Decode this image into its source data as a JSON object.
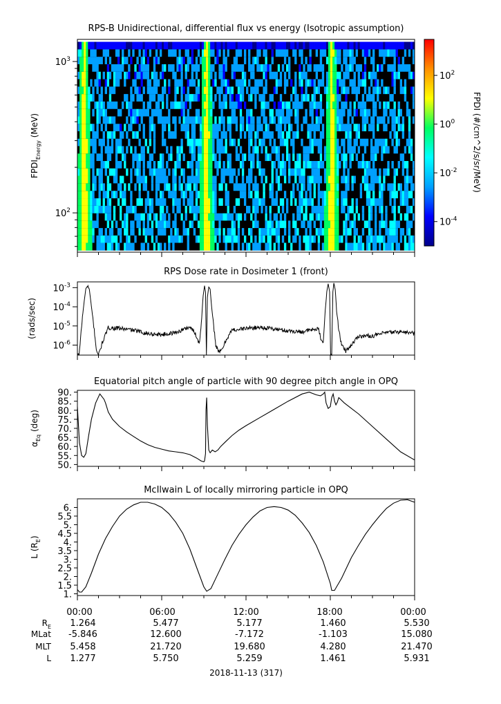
{
  "footer": {
    "date_label": "2018-11-13 (317)",
    "row_labels": [
      "R",
      "MLat",
      "MLT",
      "L"
    ],
    "row_label_sub": "E",
    "columns": [
      {
        "time": "00:00",
        "re": "1.264",
        "mlat": "-5.846",
        "mlt": "5.458",
        "l": "1.277"
      },
      {
        "time": "06:00",
        "re": "5.477",
        "mlat": "12.600",
        "mlt": "21.720",
        "l": "5.750"
      },
      {
        "time": "12:00",
        "re": "5.177",
        "mlat": "-7.172",
        "mlt": "19.680",
        "l": "5.259"
      },
      {
        "time": "18:00",
        "re": "1.460",
        "mlat": "-1.103",
        "mlt": "4.280",
        "l": "1.461"
      },
      {
        "time": "00:00",
        "re": "5.530",
        "mlat": "15.080",
        "mlt": "21.470",
        "l": "5.931"
      }
    ]
  },
  "chart_data": [
    {
      "type": "heatmap",
      "title": "RPS-B  Unidirectional, differential flux vs energy (Isotropic assumption)",
      "ylabel": "FPDI",
      "ylabel_sub": "Energy",
      "ylabel_unit": "(MeV)",
      "y_scale": "log",
      "ylim": [
        55,
        1400
      ],
      "y_ticks": [
        {
          "value": 100,
          "label": "10",
          "exp": "2"
        },
        {
          "value": 1000,
          "label": "10",
          "exp": "3"
        }
      ],
      "x_range_hours": [
        0,
        24
      ],
      "energy_bins_mev": [
        60,
        67,
        75,
        84,
        94,
        105,
        118,
        132,
        148,
        166,
        186,
        208,
        233,
        261,
        292,
        327,
        366,
        410,
        459,
        514,
        576,
        645,
        722,
        809,
        906,
        1015,
        1137,
        1273
      ],
      "peak_times_hours": [
        0.5,
        9.2,
        18.1
      ],
      "colorbar": {
        "label": "FPDI (#/cm^2/s/sr/MeV)",
        "scale": "log",
        "range": [
          1e-05,
          3000
        ],
        "ticks": [
          {
            "value": 0.0001,
            "label": "10",
            "exp": "-4"
          },
          {
            "value": 0.01,
            "label": "10",
            "exp": "-2"
          },
          {
            "value": 1,
            "label": "10",
            "exp": "0"
          },
          {
            "value": 100,
            "label": "10",
            "exp": "2"
          }
        ],
        "colors": [
          "#00008b",
          "#0000ff",
          "#00a0ff",
          "#00ffff",
          "#00ff60",
          "#ffff00",
          "#ff9000",
          "#ff0000"
        ]
      }
    },
    {
      "type": "line",
      "title": "RPS  Dose rate in Dosimeter 1 (front)",
      "ylabel": "(rads/sec)",
      "y_scale": "log",
      "ylim": [
        3e-07,
        0.002
      ],
      "y_ticks": [
        {
          "value": 1e-06,
          "label": "10",
          "exp": "-6"
        },
        {
          "value": 1e-05,
          "label": "10",
          "exp": "-5"
        },
        {
          "value": 0.0001,
          "label": "10",
          "exp": "-4"
        },
        {
          "value": 0.001,
          "label": "10",
          "exp": "-3"
        }
      ],
      "x": [
        0,
        0.12,
        0.3,
        0.45,
        0.6,
        0.75,
        0.85,
        1.0,
        1.2,
        1.35,
        1.5,
        1.8,
        2.2,
        3,
        4,
        5,
        6,
        7,
        8,
        8.4,
        8.6,
        8.7,
        8.85,
        8.95,
        9.05,
        9.12,
        9.18,
        9.25,
        9.35,
        9.45,
        9.55,
        9.7,
        9.85,
        10.1,
        10.3,
        10.6,
        11,
        12,
        13,
        14,
        15,
        16,
        17,
        17.2,
        17.35,
        17.5,
        17.6,
        17.75,
        17.85,
        17.95,
        18.02,
        18.1,
        18.18,
        18.25,
        18.35,
        18.45,
        18.6,
        18.8,
        19.1,
        19.5,
        20,
        21,
        22,
        23,
        24
      ],
      "values": [
        3e-07,
        3e-07,
        1e-05,
        0.00012,
        0.0009,
        0.0012,
        0.0008,
        0.0001,
        6e-06,
        6e-07,
        3e-07,
        1.5e-06,
        8e-06,
        7.5e-06,
        6e-06,
        4e-06,
        3.5e-06,
        4.5e-06,
        9e-06,
        4e-06,
        1.5e-06,
        1.5e-06,
        3e-05,
        0.0004,
        0.0012,
        0.0006,
        3e-07,
        0.0003,
        0.0011,
        0.0008,
        0.0001,
        1e-05,
        1e-06,
        4e-07,
        6e-07,
        2e-06,
        6e-06,
        7.5e-06,
        8.5e-06,
        7e-06,
        5.5e-06,
        5e-06,
        7e-06,
        6e-06,
        1.5e-06,
        1.5e-06,
        3e-05,
        0.0006,
        0.0016,
        0.0006,
        3e-07,
        3e-07,
        0.0006,
        0.0017,
        0.0008,
        6e-05,
        6e-06,
        1e-06,
        5e-07,
        1e-06,
        3e-06,
        3e-06,
        4.5e-06,
        5e-06,
        4e-06
      ]
    },
    {
      "type": "line",
      "title": "Equatorial pitch angle of particle with 90 degree pitch angle in OPQ",
      "ylabel": "α",
      "ylabel_sub": "Eq",
      "ylabel_unit": "(deg)",
      "ylim": [
        49,
        91
      ],
      "y_ticks": [
        50,
        55,
        60,
        65,
        70,
        75,
        80,
        85,
        90
      ],
      "y_tick_labels": [
        "50.",
        "55.",
        "60.",
        "65.",
        "70.",
        "75.",
        "80.",
        "85.",
        "90."
      ],
      "x": [
        0,
        0.15,
        0.3,
        0.45,
        0.6,
        0.8,
        1.0,
        1.3,
        1.6,
        1.9,
        2.0,
        2.2,
        2.5,
        3,
        3.5,
        4,
        4.5,
        5,
        5.5,
        6,
        6.5,
        7,
        7.5,
        8,
        8.5,
        8.8,
        9.0,
        9.05,
        9.12,
        9.15,
        9.2,
        9.25,
        9.35,
        9.45,
        9.6,
        9.8,
        10,
        10.2,
        10.6,
        11,
        11.5,
        12,
        13,
        14,
        15,
        16,
        16.5,
        17,
        17.3,
        17.5,
        17.6,
        17.7,
        17.85,
        18.0,
        18.1,
        18.2,
        18.3,
        18.4,
        18.5,
        18.6,
        19,
        19.5,
        20,
        21,
        22,
        23,
        24
      ],
      "values": [
        82,
        62,
        55,
        54,
        56,
        66,
        75,
        84,
        89,
        86,
        84,
        79,
        75,
        71,
        68,
        65.5,
        63,
        61,
        59.5,
        58.5,
        57.5,
        57,
        56.5,
        55.5,
        53.5,
        52,
        51.5,
        52,
        56,
        80,
        87,
        72,
        58,
        56.5,
        58,
        57,
        58,
        60,
        63,
        66,
        69,
        71.5,
        76,
        80.5,
        85,
        89,
        90,
        88.5,
        88,
        89,
        90,
        84,
        81,
        82,
        87,
        89,
        85,
        83,
        84.5,
        87,
        84,
        81,
        78,
        71,
        64,
        57,
        52.5
      ]
    },
    {
      "type": "line",
      "title": "McIlwain L of locally mirroring particle in OPQ",
      "ylabel": "L (R",
      "ylabel_sub": "E",
      "ylabel_unit": ")",
      "ylim": [
        0.9,
        6.5
      ],
      "y_ticks": [
        1,
        1.5,
        2,
        2.5,
        3,
        3.5,
        4,
        4.5,
        5,
        5.5,
        6
      ],
      "y_tick_labels": [
        "1.",
        "1.5",
        "2.",
        "2.5",
        "3.",
        "3.5",
        "4.",
        "4.5",
        "5.",
        "5.5",
        "6."
      ],
      "x": [
        0,
        0.15,
        0.3,
        0.6,
        1.0,
        1.5,
        2,
        2.5,
        3,
        3.5,
        4,
        4.5,
        5,
        5.5,
        6,
        6.5,
        7,
        7.5,
        8,
        8.5,
        9.0,
        9.2,
        9.5,
        10,
        10.5,
        11,
        11.5,
        12,
        12.5,
        13,
        13.5,
        14,
        14.5,
        15,
        15.5,
        16,
        16.5,
        17,
        17.5,
        18.0,
        18.1,
        18.3,
        18.8,
        19.5,
        20,
        20.5,
        21,
        21.5,
        22,
        22.5,
        23,
        23.5,
        24
      ],
      "values": [
        1.25,
        1.1,
        1.1,
        1.4,
        2.2,
        3.3,
        4.2,
        4.9,
        5.5,
        5.9,
        6.15,
        6.3,
        6.3,
        6.2,
        6.0,
        5.65,
        5.15,
        4.5,
        3.6,
        2.5,
        1.4,
        1.15,
        1.3,
        2.15,
        3.0,
        3.8,
        4.45,
        5.0,
        5.45,
        5.8,
        6.0,
        6.05,
        6.0,
        5.85,
        5.55,
        5.1,
        4.55,
        3.8,
        2.85,
        1.6,
        1.2,
        1.2,
        1.9,
        3.1,
        3.8,
        4.45,
        5.0,
        5.5,
        5.95,
        6.25,
        6.42,
        6.45,
        6.3
      ]
    }
  ]
}
